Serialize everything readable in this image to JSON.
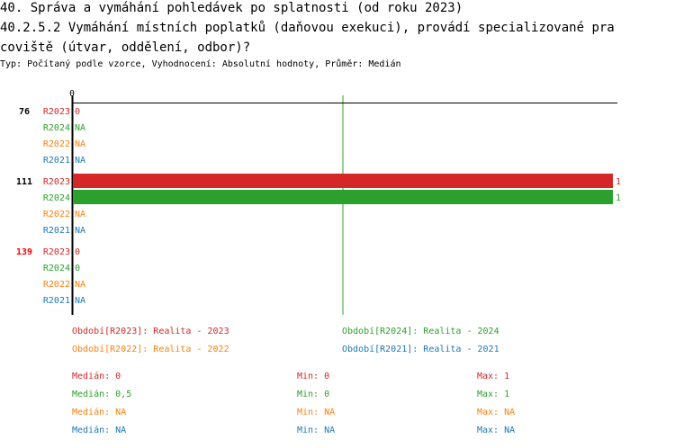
{
  "title_lines": [
    "40. Správa a vymáhání pohledávek po splatnosti (od roku 2023)",
    "40.2.5.2 Vymáhání místních poplatků (daňovou exekuci), provádí specializované pra",
    "coviště (útvar, oddělení, odbor)?"
  ],
  "subtitle": "Typ: Počítaný podle vzorce, Vyhodnocení: Absolutní hodnoty, Průměr: Medián",
  "colors": {
    "R2023": "#d62728",
    "R2024": "#2ca02c",
    "R2022": "#ff7f0e",
    "R2021": "#1f77b4"
  },
  "chart_data": {
    "type": "bar",
    "orientation": "horizontal",
    "xlim": [
      0,
      1
    ],
    "x_tick_labels": [
      "0"
    ],
    "median_line": {
      "value": 0.5,
      "color": "#2ca02c"
    },
    "groups": [
      {
        "label": "76",
        "label_color": "#000000",
        "series": [
          {
            "name": "R2023",
            "value": 0,
            "label": "0"
          },
          {
            "name": "R2024",
            "value": null,
            "label": "NA"
          },
          {
            "name": "R2022",
            "value": null,
            "label": "NA"
          },
          {
            "name": "R2021",
            "value": null,
            "label": "NA"
          }
        ]
      },
      {
        "label": "111",
        "label_color": "#000000",
        "series": [
          {
            "name": "R2023",
            "value": 1,
            "label": "1"
          },
          {
            "name": "R2024",
            "value": 1,
            "label": "1"
          },
          {
            "name": "R2022",
            "value": null,
            "label": "NA"
          },
          {
            "name": "R2021",
            "value": null,
            "label": "NA"
          }
        ]
      },
      {
        "label": "139",
        "label_color": "#ff0000",
        "series": [
          {
            "name": "R2023",
            "value": 0,
            "label": "0"
          },
          {
            "name": "R2024",
            "value": 0,
            "label": "0"
          },
          {
            "name": "R2022",
            "value": null,
            "label": "NA"
          },
          {
            "name": "R2021",
            "value": null,
            "label": "NA"
          }
        ]
      }
    ],
    "legend": [
      {
        "key": "R2023",
        "text": "Období[R2023]: Realita - 2023"
      },
      {
        "key": "R2024",
        "text": "Období[R2024]: Realita - 2024"
      },
      {
        "key": "R2022",
        "text": "Období[R2022]: Realita - 2022"
      },
      {
        "key": "R2021",
        "text": "Období[R2021]: Realita - 2021"
      }
    ],
    "stats": [
      {
        "key": "R2023",
        "median": "Medián: 0",
        "min": "Min: 0",
        "max": "Max: 1"
      },
      {
        "key": "R2024",
        "median": "Medián: 0,5",
        "min": "Min: 0",
        "max": "Max: 1"
      },
      {
        "key": "R2022",
        "median": "Medián: NA",
        "min": "Min: NA",
        "max": "Max: NA"
      },
      {
        "key": "R2021",
        "median": "Medián: NA",
        "min": "Min: NA",
        "max": "Max: NA"
      }
    ]
  }
}
